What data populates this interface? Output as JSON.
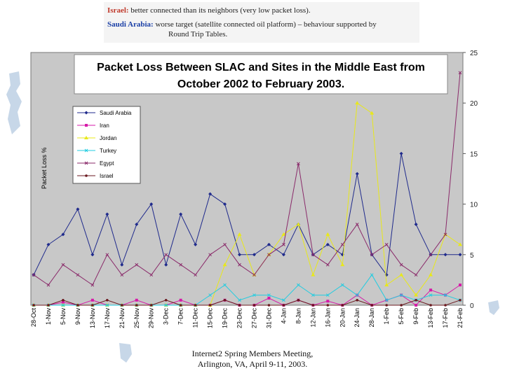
{
  "notes": {
    "israel": {
      "key": "Israel:",
      "text": "better connected than its neighbors (very low packet loss).",
      "color": "#c0392b"
    },
    "saudi": {
      "key": "Saudi Arabia:",
      "text": "worse target (satellite connected oil platform) – behaviour supported by",
      "text2": "Round Trip Tables.",
      "color": "#1a3fa6"
    }
  },
  "footer": {
    "line1": "Internet2 Spring Members Meeting,",
    "line2": "Arlington, VA, April 9-11, 2003."
  },
  "chart_data": {
    "type": "line",
    "title_line1": "Packet Loss Between SLAC and Sites in the Middle East from",
    "title_line2": "October 2002 to February 2003.",
    "ylabel": "Packet Loss %",
    "ylim": [
      0,
      25
    ],
    "yticks": [
      "0",
      "5",
      "10",
      "15",
      "20",
      "25"
    ],
    "categories": [
      "28-Oct",
      "1-Nov",
      "5-Nov",
      "9-Nov",
      "13-Nov",
      "17-Nov",
      "21-Nov",
      "25-Nov",
      "29-Nov",
      "3-Dec",
      "7-Dec",
      "11-Dec",
      "15-Dec",
      "19-Dec",
      "23-Dec",
      "27-Dec",
      "31-Dec",
      "4-Jan",
      "8-Jan",
      "12-Jan",
      "16-Jan",
      "20-Jan",
      "24-Jan",
      "28-Jan",
      "1-Feb",
      "5-Feb",
      "9-Feb",
      "13-Feb",
      "17-Feb",
      "21-Feb"
    ],
    "series": [
      {
        "name": "Saudi Arabia",
        "color": "#1f2a8c",
        "marker": "diamond",
        "values": [
          3,
          6,
          7,
          9.5,
          5,
          9,
          4,
          8,
          10,
          4,
          9,
          6,
          11,
          10,
          5,
          5,
          6,
          5,
          8,
          5,
          6,
          5,
          13,
          5,
          3,
          15,
          8,
          5,
          5,
          5
        ]
      },
      {
        "name": "Iran",
        "color": "#d61aa8",
        "marker": "square",
        "values": [
          0,
          0,
          0.3,
          0,
          0.5,
          0,
          0,
          0.5,
          0,
          0,
          0.5,
          0,
          0,
          0.5,
          0,
          0,
          0.7,
          0,
          0.5,
          0,
          0.4,
          0,
          1,
          0,
          0.5,
          1,
          0,
          1.5,
          1,
          2
        ]
      },
      {
        "name": "Jordan",
        "color": "#e8e81a",
        "marker": "triangle",
        "values": [
          0,
          0,
          0,
          0,
          0,
          0,
          0,
          0,
          0,
          0,
          0,
          0,
          0,
          4,
          7,
          3,
          5,
          7,
          8,
          3,
          7,
          4,
          20,
          19,
          2,
          3,
          1,
          3,
          7,
          6
        ]
      },
      {
        "name": "Turkey",
        "color": "#22cce0",
        "marker": "x",
        "values": [
          0,
          0,
          0,
          0,
          0,
          0,
          0,
          0,
          0,
          0,
          0,
          0,
          1,
          2,
          0.5,
          1,
          1,
          0.5,
          2,
          1,
          1,
          2,
          1,
          3,
          0.5,
          1,
          0.5,
          1,
          1,
          0.5
        ]
      },
      {
        "name": "Egypt",
        "color": "#8a2a6a",
        "marker": "x",
        "values": [
          3,
          2,
          4,
          3,
          2,
          5,
          3,
          4,
          3,
          5,
          4,
          3,
          5,
          6,
          4,
          3,
          5,
          6,
          14,
          5,
          4,
          6,
          8,
          5,
          6,
          4,
          3,
          5,
          7,
          23
        ]
      },
      {
        "name": "Israel",
        "color": "#6b1a20",
        "marker": "circle",
        "values": [
          0,
          0,
          0.5,
          0,
          0,
          0.5,
          0,
          0,
          0,
          0.5,
          0,
          0,
          0,
          0.5,
          0,
          0,
          0,
          0,
          0.5,
          0,
          0,
          0,
          0.5,
          0,
          0,
          0,
          0.5,
          0,
          0,
          0.5
        ]
      }
    ]
  }
}
